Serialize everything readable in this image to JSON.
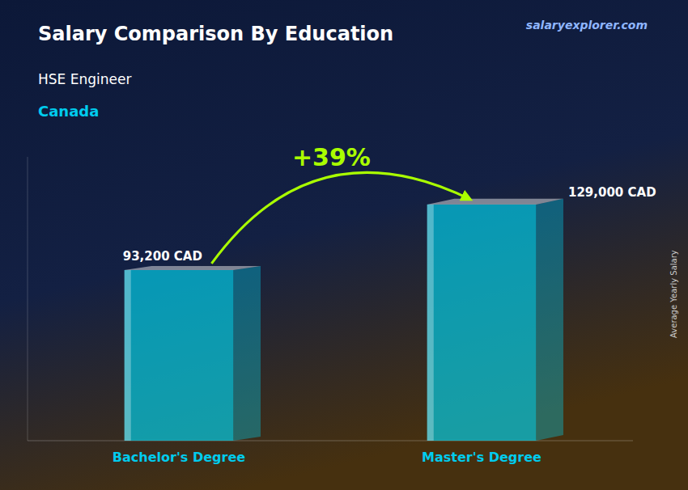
{
  "chart_data": {
    "type": "bar",
    "title": "Salary Comparison By Education",
    "subtitle": "HSE Engineer",
    "annotations": [
      "Canada",
      "salaryexplorer.com",
      "+39%"
    ],
    "ylabel": "Average Yearly Salary",
    "categories": [
      "Bachelor's Degree",
      "Master's Degree"
    ],
    "values": [
      93200,
      129000
    ],
    "value_labels": [
      "93,200 CAD",
      "129,000 CAD"
    ],
    "data_labels": true,
    "color": "#00d8f5",
    "ylim": [
      0,
      155000
    ],
    "tick_labels": false,
    "grid": false
  }
}
